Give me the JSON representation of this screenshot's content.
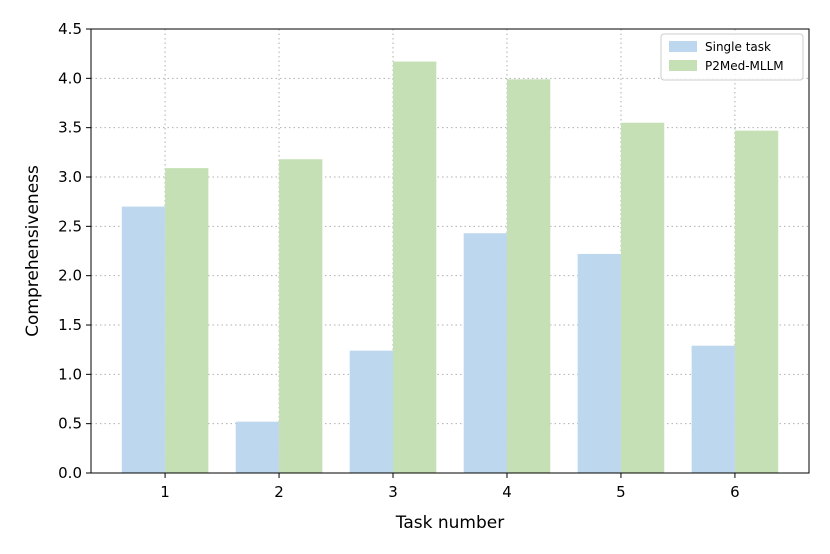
{
  "chart_data": {
    "type": "bar",
    "categories": [
      "1",
      "2",
      "3",
      "4",
      "5",
      "6"
    ],
    "series": [
      {
        "name": "Single task",
        "values": [
          2.7,
          0.52,
          1.24,
          2.43,
          2.22,
          1.29
        ],
        "color": "#bdd7ee"
      },
      {
        "name": "P2Med-MLLM",
        "values": [
          3.09,
          3.18,
          4.17,
          3.99,
          3.55,
          3.47
        ],
        "color": "#c5e0b4"
      }
    ],
    "title": "",
    "xlabel": "Task number",
    "ylabel": "Comprehensiveness",
    "ylim": [
      0,
      4.5
    ],
    "yticks": [
      "0.0",
      "0.5",
      "1.0",
      "1.5",
      "2.0",
      "2.5",
      "3.0",
      "3.5",
      "4.0",
      "4.5"
    ],
    "grid": true,
    "legend_position": "top-right"
  }
}
